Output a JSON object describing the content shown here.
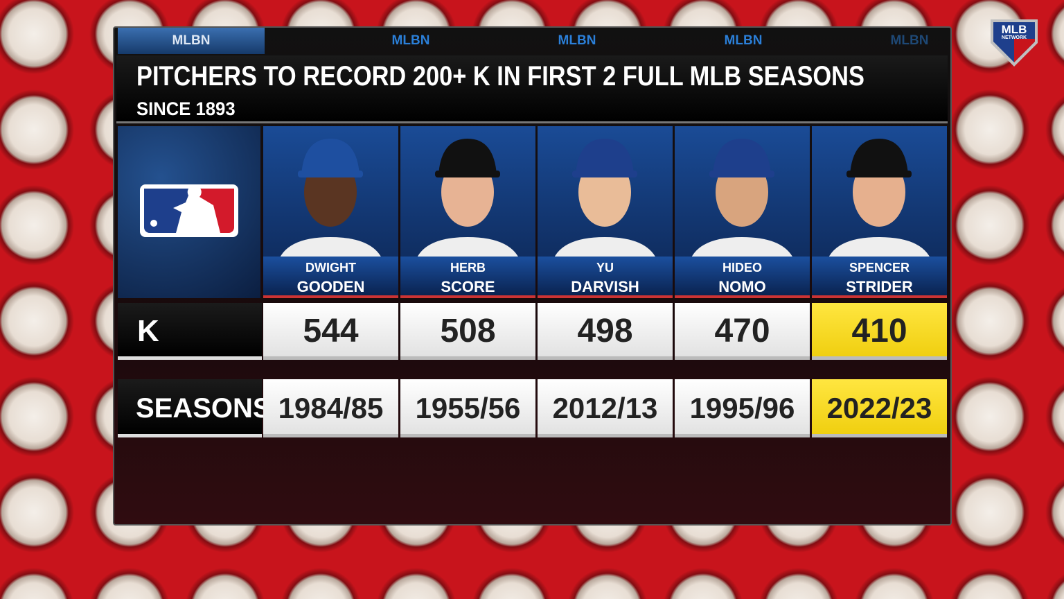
{
  "header": {
    "tabs": [
      "MLBN",
      "MLBN",
      "MLBN",
      "MLBN",
      "MLBN"
    ],
    "title": "PITCHERS TO RECORD 200+ K IN FIRST 2 FULL MLB SEASONS",
    "subtitle": "SINCE 1893"
  },
  "logo": {
    "top": "MLB",
    "bottom": "NETWORK"
  },
  "table": {
    "row_labels": [
      "K",
      "SEASONS"
    ],
    "players": [
      {
        "first": "DWIGHT",
        "last": "GOODEN",
        "k": 544,
        "seasons": "1984/85"
      },
      {
        "first": "HERB",
        "last": "SCORE",
        "k": 508,
        "seasons": "1955/56"
      },
      {
        "first": "YU",
        "last": "DARVISH",
        "k": 498,
        "seasons": "2012/13"
      },
      {
        "first": "HIDEO",
        "last": "NOMO",
        "k": 470,
        "seasons": "1995/96"
      },
      {
        "first": "SPENCER",
        "last": "STRIDER",
        "k": 410,
        "seasons": "2022/23"
      }
    ]
  }
}
